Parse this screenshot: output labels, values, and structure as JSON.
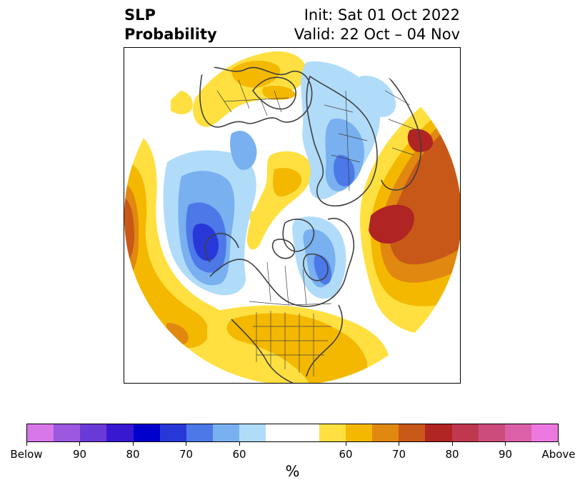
{
  "title": {
    "left_line1": "SLP",
    "left_line2": "Probability",
    "right_line1": "Init: Sat 01 Oct 2022",
    "right_line2": "Valid: 22 Oct – 04 Nov"
  },
  "colorbar": {
    "label": "%",
    "colors": [
      "#d878e8",
      "#9c58e0",
      "#6a3ad8",
      "#3818d0",
      "#0000cc",
      "#2838d8",
      "#4c78e8",
      "#78b0f0",
      "#b0dcfa",
      "#ffffff",
      "#ffffff",
      "#ffe040",
      "#f4b800",
      "#e08810",
      "#c85818",
      "#b02424",
      "#c03850",
      "#cc4c7c",
      "#dc60a8",
      "#ec78e0"
    ],
    "ticks": [
      {
        "label": "Below",
        "frac": 0.0
      },
      {
        "label": "90",
        "frac": 0.1
      },
      {
        "label": "80",
        "frac": 0.2
      },
      {
        "label": "70",
        "frac": 0.3
      },
      {
        "label": "60",
        "frac": 0.4
      },
      {
        "label": "60",
        "frac": 0.6
      },
      {
        "label": "70",
        "frac": 0.7
      },
      {
        "label": "80",
        "frac": 0.8
      },
      {
        "label": "90",
        "frac": 0.9
      },
      {
        "label": "Above",
        "frac": 1.0
      }
    ]
  },
  "palette": {
    "y60": "#ffe040",
    "y65": "#f4b800",
    "o70": "#e08810",
    "o75": "#c85818",
    "r80": "#b02424",
    "b60": "#b0dcfa",
    "b65": "#78b0f0",
    "b70": "#4c78e8",
    "b75": "#2838d8",
    "coast": "#404040"
  }
}
